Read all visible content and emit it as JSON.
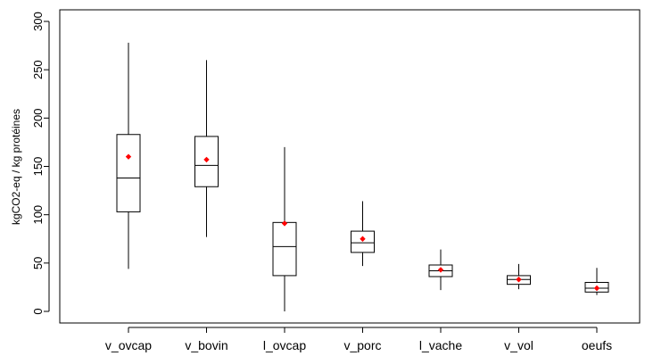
{
  "chart_data": {
    "type": "boxplot",
    "title": "",
    "xlabel": "",
    "ylabel": "kgCO2-eq / kg protéines",
    "ylim": [
      -12,
      312
    ],
    "yticks": [
      0,
      50,
      100,
      150,
      200,
      250,
      300
    ],
    "grid": false,
    "legend": "none",
    "colors": {
      "box": "#000000",
      "mean_marker": "#ff0000"
    },
    "categories": [
      "v_ovcap",
      "v_bovin",
      "l_ovcap",
      "v_porc",
      "l_vache",
      "v_vol",
      "oeufs"
    ],
    "boxes": [
      {
        "category": "v_ovcap",
        "whisker_low": 44,
        "q1": 103,
        "median": 138,
        "q3": 183,
        "whisker_high": 278,
        "mean": 160
      },
      {
        "category": "v_bovin",
        "whisker_low": 77,
        "q1": 129,
        "median": 151,
        "q3": 181,
        "whisker_high": 260,
        "mean": 157
      },
      {
        "category": "l_ovcap",
        "whisker_low": 0,
        "q1": 37,
        "median": 67,
        "q3": 92,
        "whisker_high": 170,
        "mean": 91
      },
      {
        "category": "v_porc",
        "whisker_low": 47,
        "q1": 61,
        "median": 71,
        "q3": 83,
        "whisker_high": 114,
        "mean": 75
      },
      {
        "category": "l_vache",
        "whisker_low": 22,
        "q1": 36,
        "median": 42,
        "q3": 48,
        "whisker_high": 64,
        "mean": 43
      },
      {
        "category": "v_vol",
        "whisker_low": 23,
        "q1": 28,
        "median": 33,
        "q3": 37,
        "whisker_high": 49,
        "mean": 33
      },
      {
        "category": "oeufs",
        "whisker_low": 17,
        "q1": 20,
        "median": 24,
        "q3": 30,
        "whisker_high": 45,
        "mean": 24
      }
    ]
  }
}
